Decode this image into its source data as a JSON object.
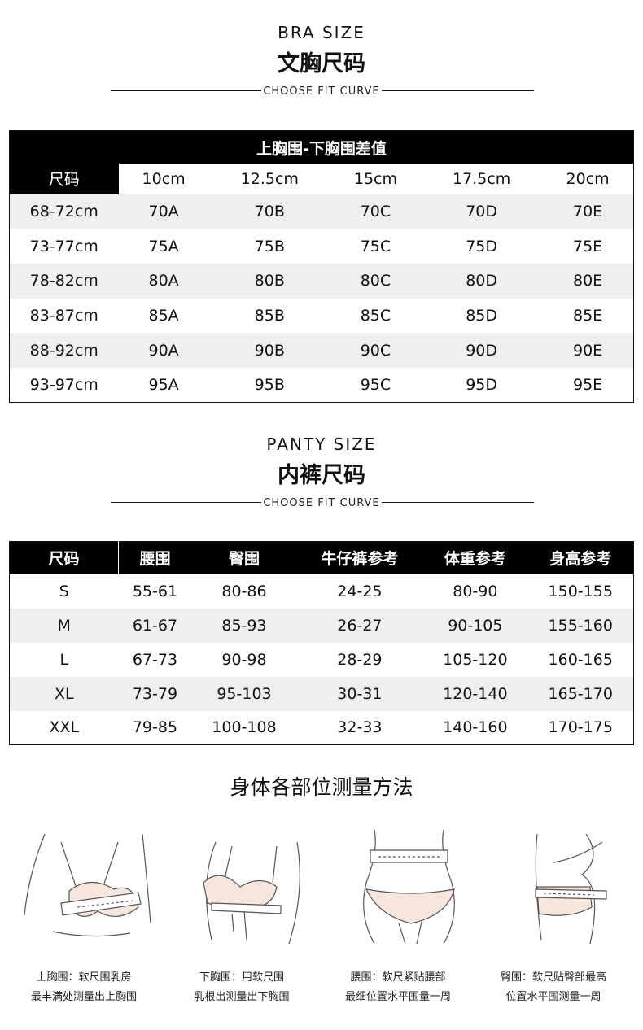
{
  "bra": {
    "title_en": "BRA SIZE",
    "title_zh": "文胸尺码",
    "curve": "CHOOSE FIT CURVE",
    "table_title": "上胸围-下胸围差值",
    "headers": [
      "尺码",
      "10cm",
      "12.5cm",
      "15cm",
      "17.5cm",
      "20cm"
    ],
    "rows": [
      [
        "68-72cm",
        "70A",
        "70B",
        "70C",
        "70D",
        "70E"
      ],
      [
        "73-77cm",
        "75A",
        "75B",
        "75C",
        "75D",
        "75E"
      ],
      [
        "78-82cm",
        "80A",
        "80B",
        "80C",
        "80D",
        "80E"
      ],
      [
        "83-87cm",
        "85A",
        "85B",
        "85C",
        "85D",
        "85E"
      ],
      [
        "88-92cm",
        "90A",
        "90B",
        "90C",
        "90D",
        "90E"
      ],
      [
        "93-97cm",
        "95A",
        "95B",
        "95C",
        "95D",
        "95E"
      ]
    ]
  },
  "panty": {
    "title_en": "PANTY SIZE",
    "title_zh": "内裤尺码",
    "curve": "CHOOSE FIT CURVE",
    "headers": [
      "尺码",
      "腰围",
      "臀围",
      "牛仔裤参考",
      "体重参考",
      "身高参考"
    ],
    "rows": [
      [
        "S",
        "55-61",
        "80-86",
        "24-25",
        "80-90",
        "150-155"
      ],
      [
        "M",
        "61-67",
        "85-93",
        "26-27",
        "90-105",
        "155-160"
      ],
      [
        "L",
        "67-73",
        "90-98",
        "28-29",
        "105-120",
        "160-165"
      ],
      [
        "XL",
        "73-79",
        "95-103",
        "30-31",
        "120-140",
        "165-170"
      ],
      [
        "XXL",
        "79-85",
        "100-108",
        "32-33",
        "140-160",
        "170-175"
      ]
    ]
  },
  "measure": {
    "title": "身体各部位测量方法",
    "items": [
      {
        "l1": "上胸围：软尺围乳房",
        "l2": "最丰满处测量出上胸围"
      },
      {
        "l1": "下胸围：用软尺围",
        "l2": "乳根出测量出下胸围"
      },
      {
        "l1": "腰围：软尺紧贴腰部",
        "l2": "最细位置水平围量一周"
      },
      {
        "l1": "臀围：软尺贴臀部最高",
        "l2": "位置水平围测量一周"
      }
    ]
  },
  "colors": {
    "header_bg": "#000000",
    "stripe": "#efefef",
    "skin": "#f6e6dc"
  }
}
